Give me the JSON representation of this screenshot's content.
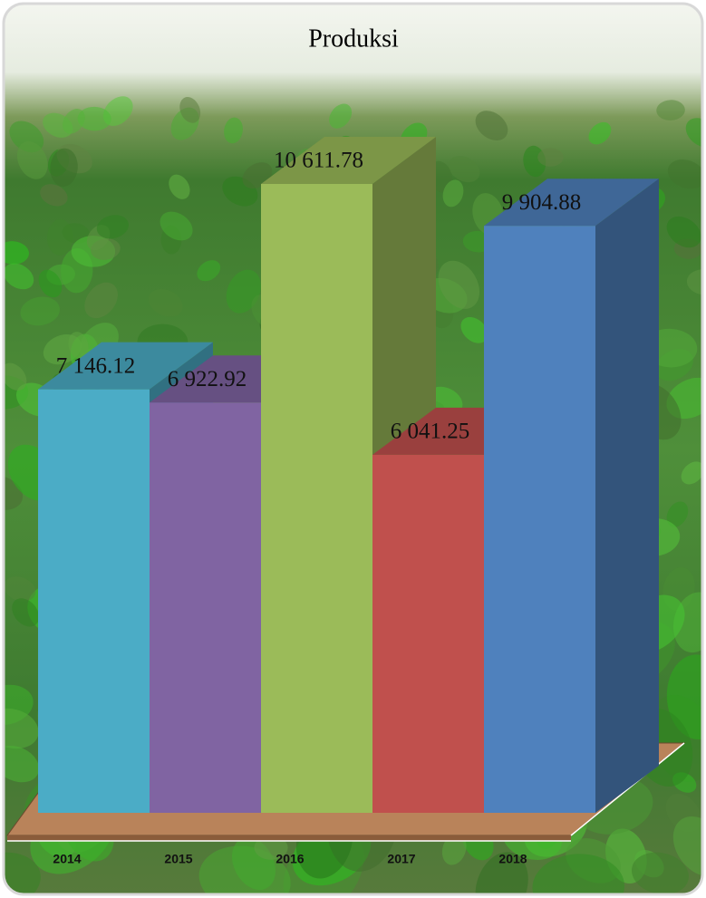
{
  "chart_data": {
    "type": "bar3d",
    "title": "Produksi",
    "categories": [
      "2014",
      "2015",
      "2016",
      "2017",
      "2018"
    ],
    "values": [
      7146.12,
      6922.92,
      10611.78,
      6041.25,
      9904.88
    ],
    "value_labels": [
      "7 146.12",
      "6 922.92",
      "10 611.78",
      "6 041.25",
      "9 904.88"
    ],
    "colors": [
      "#4bacc6",
      "#8064a2",
      "#9bbb59",
      "#c0504d",
      "#4f81bd"
    ]
  }
}
